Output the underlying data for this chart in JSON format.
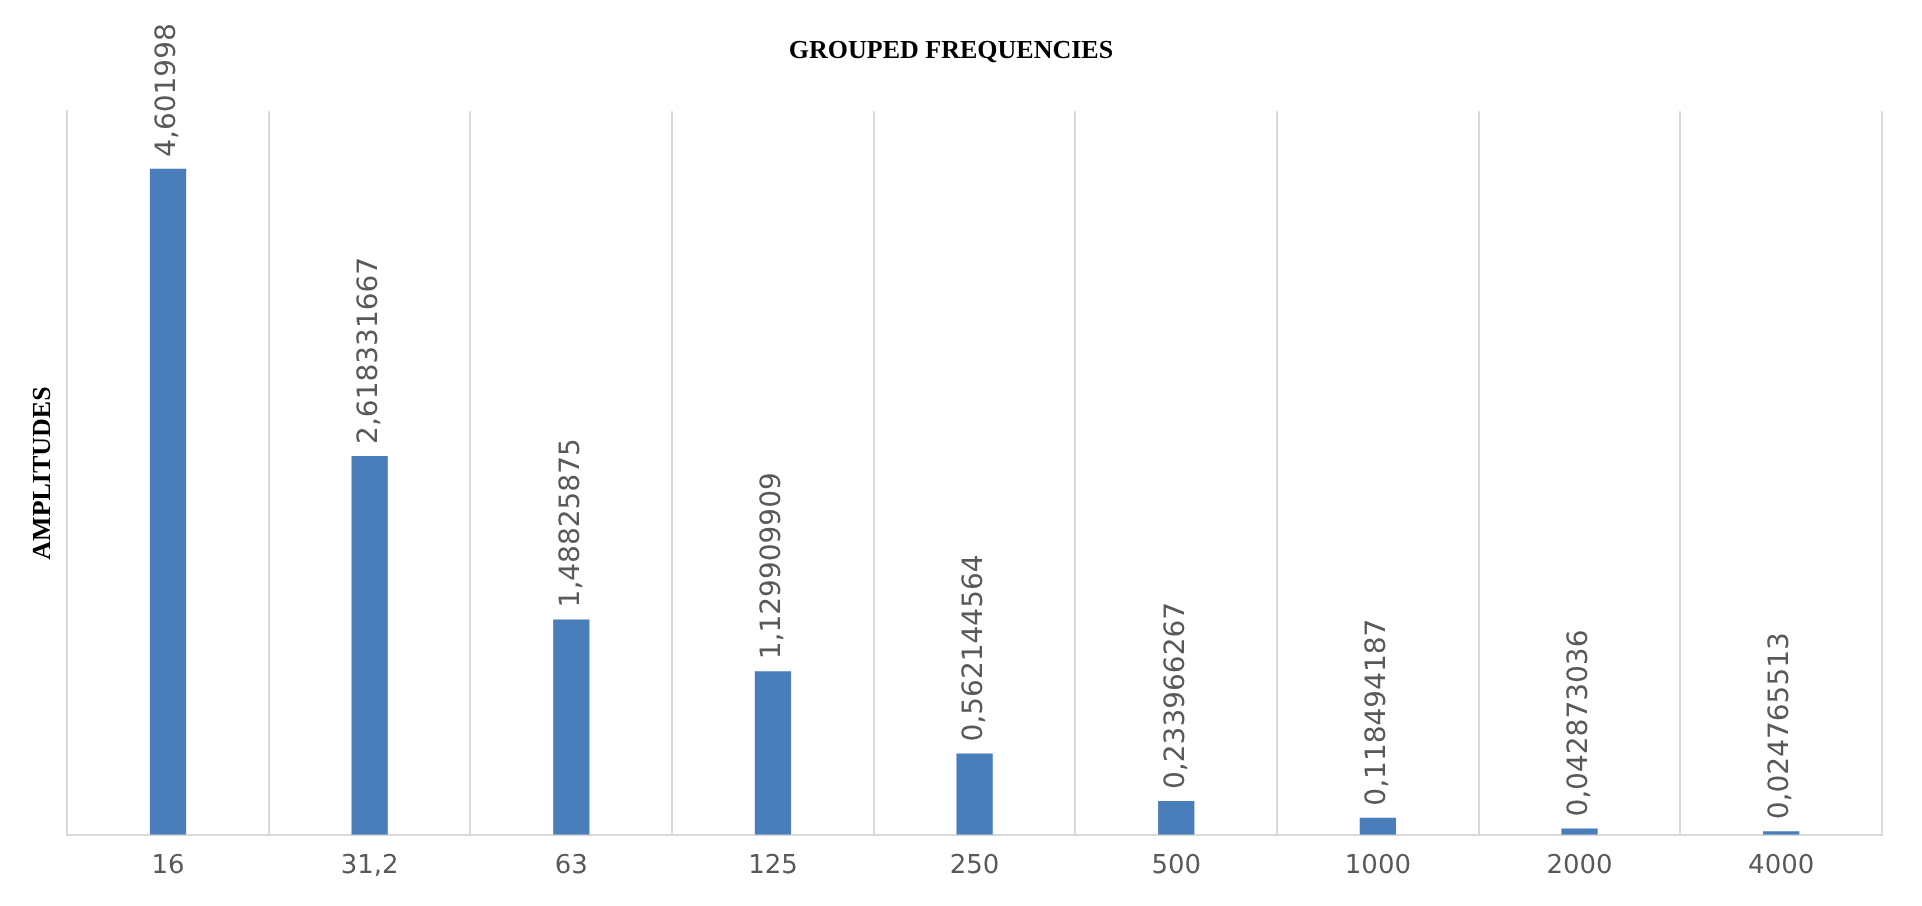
{
  "chart_data": {
    "type": "bar",
    "title": "GROUPED FREQUENCIES",
    "ylabel": "AMPLITUDES",
    "categories": [
      "16",
      "31,2",
      "63",
      "125",
      "250",
      "500",
      "1000",
      "2000",
      "4000"
    ],
    "values": [
      4.601998,
      2.618331667,
      1.48825875,
      1.129909909,
      0.562144564,
      0.233966267,
      0.118494187,
      0.042873036,
      0.024765513
    ],
    "value_labels": [
      "4,601998",
      "2,618331667",
      "1,48825875",
      "1,129909909",
      "0,562144564",
      "0,233966267",
      "0,118494187",
      "0,042873036",
      "0,024765513"
    ],
    "color": "#4a7ebb",
    "ylim": [
      0,
      5
    ],
    "grid": "x",
    "legend": false
  }
}
